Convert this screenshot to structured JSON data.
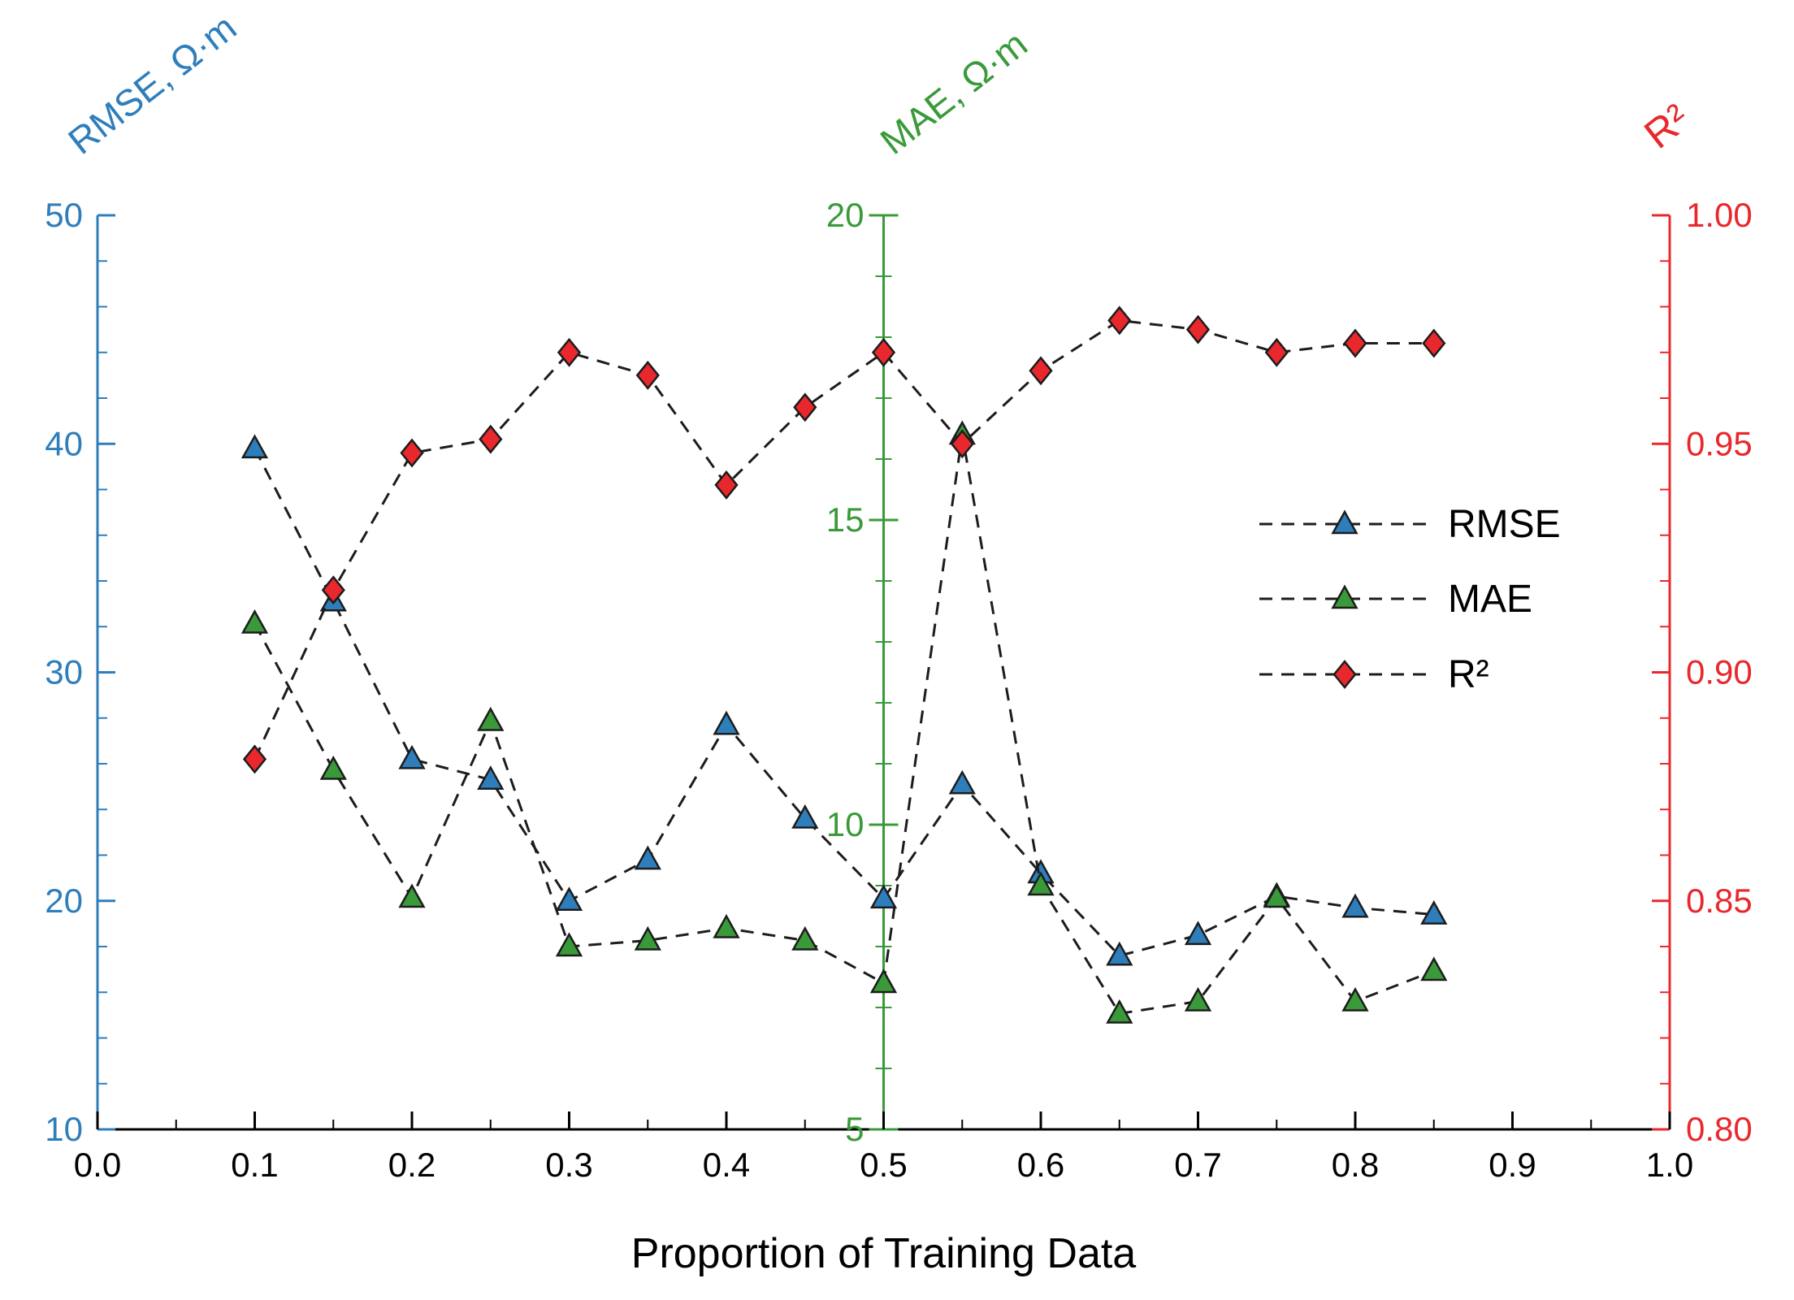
{
  "chart_data": {
    "type": "line",
    "x": [
      0.1,
      0.15,
      0.2,
      0.25,
      0.3,
      0.35,
      0.4,
      0.45,
      0.5,
      0.55,
      0.6,
      0.65,
      0.7,
      0.75,
      0.8,
      0.85
    ],
    "series": [
      {
        "name": "RMSE",
        "axis": "left",
        "marker": "triangle",
        "marker_color": "#2e7ebc",
        "values": [
          39.8,
          33.1,
          26.2,
          25.3,
          20.0,
          21.8,
          27.7,
          23.6,
          20.1,
          25.1,
          21.2,
          17.6,
          18.5,
          20.2,
          19.7,
          19.4
        ]
      },
      {
        "name": "MAE",
        "axis": "middle",
        "marker": "triangle",
        "marker_color": "#3a9a3a",
        "values": [
          13.3,
          10.9,
          8.8,
          11.7,
          8.0,
          8.1,
          8.3,
          8.1,
          7.4,
          16.4,
          9.0,
          6.9,
          7.1,
          8.8,
          7.1,
          7.6
        ]
      },
      {
        "name": "R²",
        "axis": "right",
        "marker": "diamond",
        "marker_color": "#e8282d",
        "values": [
          0.881,
          0.918,
          0.948,
          0.951,
          0.97,
          0.965,
          0.941,
          0.958,
          0.97,
          0.95,
          0.966,
          0.977,
          0.975,
          0.97,
          0.972,
          0.972
        ]
      }
    ],
    "axes": {
      "x": {
        "label": "Proportion of Training Data",
        "min": 0.0,
        "max": 1.0,
        "major": 0.1,
        "minor": 0.05,
        "decimals": 1,
        "color": "#000000"
      },
      "left": {
        "label": "RMSE, Ω·m",
        "min": 10,
        "max": 50,
        "major": 10,
        "minor": 2,
        "decimals": 0,
        "color": "#2e7ebc"
      },
      "middle": {
        "label": "MAE, Ω·m",
        "min": 5,
        "max": 20,
        "major": 5,
        "minor": 1,
        "decimals": 0,
        "color": "#3a9a3a",
        "position_x": 0.5
      },
      "right": {
        "label": "R²",
        "min": 0.8,
        "max": 1.0,
        "major": 0.05,
        "minor": 0.01,
        "decimals": 2,
        "color": "#e8282d"
      }
    },
    "legend": {
      "position": "center-right",
      "entries": [
        "RMSE",
        "MAE",
        "R²"
      ]
    },
    "line_style": {
      "color": "#1c1c1c",
      "dash": "16 11",
      "width": 3
    },
    "grid": "off",
    "title": ""
  }
}
